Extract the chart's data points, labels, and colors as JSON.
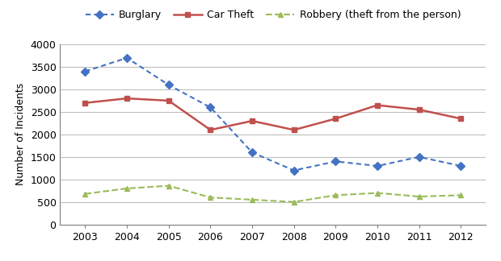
{
  "years": [
    2003,
    2004,
    2005,
    2006,
    2007,
    2008,
    2009,
    2010,
    2011,
    2012
  ],
  "burglary": [
    3400,
    3700,
    3100,
    2600,
    1600,
    1200,
    1400,
    1300,
    1500,
    1300
  ],
  "car_theft": [
    2700,
    2800,
    2750,
    2100,
    2300,
    2100,
    2350,
    2650,
    2550,
    2350
  ],
  "robbery": [
    680,
    800,
    860,
    600,
    550,
    500,
    650,
    700,
    620,
    650
  ],
  "burglary_color": "#4472C4",
  "car_theft_color": "#C0504D",
  "robbery_color": "#9BBB59",
  "ylabel": "Number of Incidents",
  "ylim": [
    0,
    4000
  ],
  "yticks": [
    0,
    500,
    1000,
    1500,
    2000,
    2500,
    3000,
    3500,
    4000
  ],
  "legend_labels": [
    "Burglary",
    "Car Theft",
    "Robbery (theft from the person)"
  ],
  "background_color": "#ffffff",
  "grid_color": "#bfbfbf",
  "spine_color": "#7f7f7f"
}
